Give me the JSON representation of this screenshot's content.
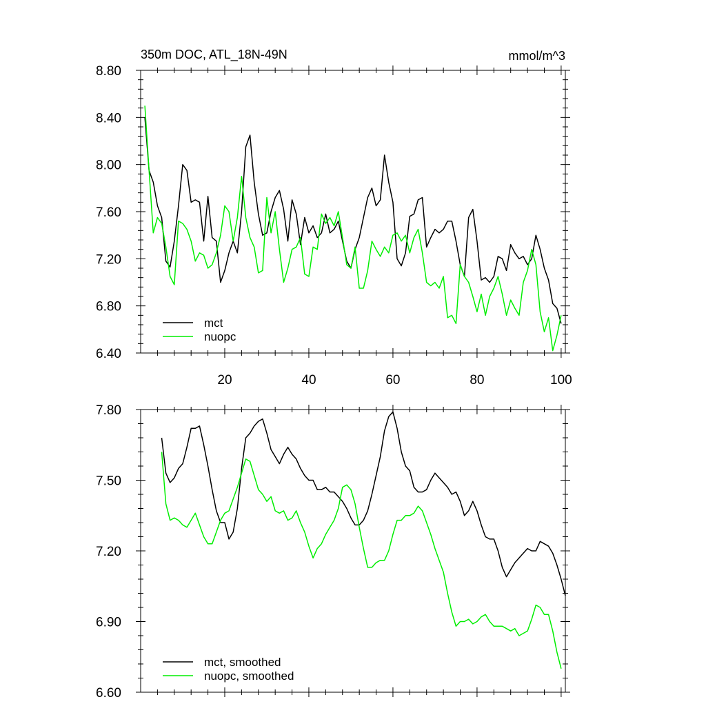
{
  "figure": {
    "panel_top": {
      "title_left": "350m DOC, ATL_18N-49N",
      "title_right": "mmol/m^3"
    }
  },
  "chart_data": [
    {
      "type": "line",
      "title": "350m DOC, ATL_18N-49N",
      "units": "mmol/m^3",
      "xlim": [
        0,
        101
      ],
      "ylim": [
        6.4,
        8.8
      ],
      "x_ticks": [
        20,
        40,
        60,
        80,
        100
      ],
      "x_tick_labels": [
        "20",
        "40",
        "60",
        "80",
        "100"
      ],
      "y_ticks": [
        6.4,
        6.8,
        7.2,
        7.6,
        8.0,
        8.4,
        8.8
      ],
      "y_tick_labels": [
        "6.40",
        "6.80",
        "7.20",
        "7.60",
        "8.00",
        "8.40",
        "8.80"
      ],
      "legend": [
        "mct",
        "nuopc"
      ],
      "legend_position": "bottom-left",
      "x_start": 1,
      "series": [
        {
          "name": "mct",
          "color": "#000000",
          "values": [
            8.4,
            7.95,
            7.85,
            7.65,
            7.55,
            7.18,
            7.13,
            7.35,
            7.65,
            8.0,
            7.95,
            7.68,
            7.7,
            7.68,
            7.35,
            7.73,
            7.38,
            7.35,
            7.0,
            7.1,
            7.25,
            7.35,
            7.25,
            7.6,
            8.15,
            8.25,
            7.85,
            7.58,
            7.4,
            7.42,
            7.6,
            7.72,
            7.78,
            7.62,
            7.35,
            7.7,
            7.58,
            7.32,
            7.55,
            7.42,
            7.48,
            7.38,
            7.42,
            7.58,
            7.42,
            7.45,
            7.52,
            7.35,
            7.18,
            7.12,
            7.28,
            7.38,
            7.55,
            7.72,
            7.8,
            7.65,
            7.7,
            8.08,
            7.85,
            7.68,
            7.2,
            7.14,
            7.25,
            7.56,
            7.58,
            7.7,
            7.72,
            7.3,
            7.38,
            7.45,
            7.42,
            7.45,
            7.52,
            7.52,
            7.35,
            7.15,
            7.05,
            7.55,
            7.62,
            7.35,
            7.02,
            7.04,
            7.0,
            7.05,
            7.22,
            7.2,
            7.1,
            7.32,
            7.25,
            7.2,
            7.22,
            7.15,
            7.2,
            7.4,
            7.28,
            7.12,
            7.02,
            6.82,
            6.78,
            6.65
          ]
        },
        {
          "name": "nuopc",
          "color": "#00ee00",
          "values": [
            8.5,
            7.95,
            7.42,
            7.55,
            7.5,
            7.3,
            7.05,
            6.98,
            7.52,
            7.5,
            7.45,
            7.35,
            7.18,
            7.25,
            7.23,
            7.12,
            7.15,
            7.25,
            7.4,
            7.65,
            7.6,
            7.35,
            7.55,
            7.9,
            7.55,
            7.38,
            7.3,
            7.08,
            7.1,
            7.72,
            7.42,
            7.6,
            7.28,
            7.0,
            7.12,
            7.28,
            7.3,
            7.38,
            7.07,
            7.05,
            7.3,
            7.28,
            7.58,
            7.5,
            7.55,
            7.48,
            7.6,
            7.38,
            7.15,
            7.12,
            7.3,
            6.95,
            6.95,
            7.1,
            7.35,
            7.28,
            7.22,
            7.3,
            7.25,
            7.4,
            7.42,
            7.35,
            7.4,
            7.25,
            7.38,
            7.45,
            7.25,
            7.0,
            6.97,
            7.0,
            6.95,
            7.05,
            6.7,
            6.72,
            6.65,
            7.15,
            7.05,
            7.0,
            6.88,
            6.75,
            6.9,
            6.72,
            6.88,
            6.95,
            7.05,
            6.9,
            6.72,
            6.85,
            6.78,
            6.72,
            7.0,
            7.1,
            7.28,
            7.15,
            6.75,
            6.58,
            6.7,
            6.42,
            6.55,
            6.72
          ]
        }
      ]
    },
    {
      "type": "line",
      "title": "",
      "xlim": [
        0,
        101
      ],
      "ylim": [
        6.6,
        7.8
      ],
      "x_ticks": [
        20,
        40,
        60,
        80,
        100
      ],
      "x_tick_labels": [],
      "y_ticks": [
        6.6,
        6.9,
        7.2,
        7.5,
        7.8
      ],
      "y_tick_labels": [
        "6.60",
        "6.90",
        "7.20",
        "7.50",
        "7.80"
      ],
      "legend": [
        "mct, smoothed",
        "nuopc, smoothed"
      ],
      "legend_position": "bottom-left",
      "x_start": 5,
      "series": [
        {
          "name": "mct, smoothed",
          "color": "#000000",
          "values": [
            7.68,
            7.53,
            7.49,
            7.51,
            7.55,
            7.57,
            7.64,
            7.72,
            7.72,
            7.73,
            7.65,
            7.56,
            7.46,
            7.37,
            7.32,
            7.32,
            7.25,
            7.28,
            7.38,
            7.55,
            7.68,
            7.7,
            7.73,
            7.75,
            7.76,
            7.7,
            7.63,
            7.6,
            7.57,
            7.61,
            7.64,
            7.61,
            7.59,
            7.55,
            7.52,
            7.5,
            7.5,
            7.46,
            7.46,
            7.47,
            7.45,
            7.45,
            7.43,
            7.41,
            7.38,
            7.34,
            7.31,
            7.31,
            7.33,
            7.37,
            7.44,
            7.52,
            7.6,
            7.71,
            7.77,
            7.79,
            7.72,
            7.62,
            7.56,
            7.54,
            7.47,
            7.45,
            7.45,
            7.46,
            7.5,
            7.53,
            7.51,
            7.49,
            7.47,
            7.44,
            7.45,
            7.41,
            7.35,
            7.37,
            7.41,
            7.37,
            7.31,
            7.26,
            7.25,
            7.25,
            7.2,
            7.13,
            7.09,
            7.12,
            7.15,
            7.17,
            7.19,
            7.21,
            7.2,
            7.2,
            7.24,
            7.23,
            7.22,
            7.19,
            7.14,
            7.08,
            7.01
          ]
        },
        {
          "name": "nuopc, smoothed",
          "color": "#00ee00",
          "values": [
            7.62,
            7.4,
            7.33,
            7.34,
            7.33,
            7.31,
            7.3,
            7.33,
            7.36,
            7.31,
            7.26,
            7.23,
            7.23,
            7.28,
            7.33,
            7.36,
            7.37,
            7.42,
            7.47,
            7.53,
            7.59,
            7.58,
            7.52,
            7.46,
            7.44,
            7.41,
            7.43,
            7.37,
            7.36,
            7.37,
            7.33,
            7.34,
            7.37,
            7.32,
            7.28,
            7.22,
            7.17,
            7.21,
            7.23,
            7.27,
            7.3,
            7.33,
            7.38,
            7.47,
            7.48,
            7.46,
            7.4,
            7.3,
            7.21,
            7.13,
            7.13,
            7.15,
            7.16,
            7.16,
            7.2,
            7.27,
            7.33,
            7.33,
            7.35,
            7.35,
            7.36,
            7.39,
            7.37,
            7.32,
            7.27,
            7.21,
            7.16,
            7.11,
            7.02,
            6.94,
            6.88,
            6.9,
            6.9,
            6.91,
            6.89,
            6.9,
            6.92,
            6.93,
            6.9,
            6.88,
            6.88,
            6.88,
            6.87,
            6.86,
            6.87,
            6.84,
            6.85,
            6.86,
            6.91,
            6.97,
            6.96,
            6.93,
            6.93,
            6.86,
            6.77,
            6.7
          ]
        }
      ]
    }
  ]
}
